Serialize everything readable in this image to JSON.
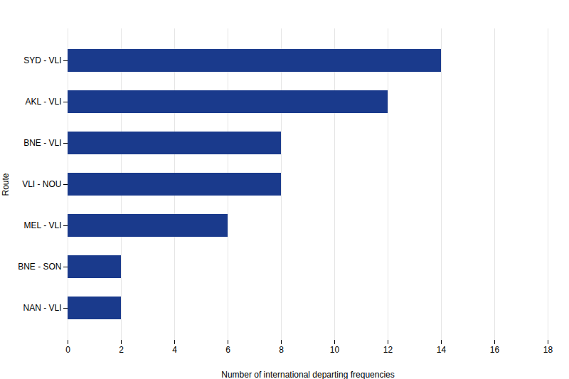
{
  "chart_data": {
    "type": "bar",
    "orientation": "horizontal",
    "categories": [
      "SYD - VLI",
      "AKL - VLI",
      "BNE - VLI",
      "VLI - NOU",
      "MEL - VLI",
      "BNE - SON",
      "NAN - VLI"
    ],
    "values": [
      14,
      12,
      8,
      8,
      6,
      2,
      2
    ],
    "color": "#1a3a8c",
    "xlabel": "Number of international departing frequencies",
    "ylabel": "Route",
    "xlim": [
      0,
      18
    ],
    "xticks": [
      0,
      2,
      4,
      6,
      8,
      10,
      12,
      14,
      16,
      18
    ],
    "grid": true
  }
}
